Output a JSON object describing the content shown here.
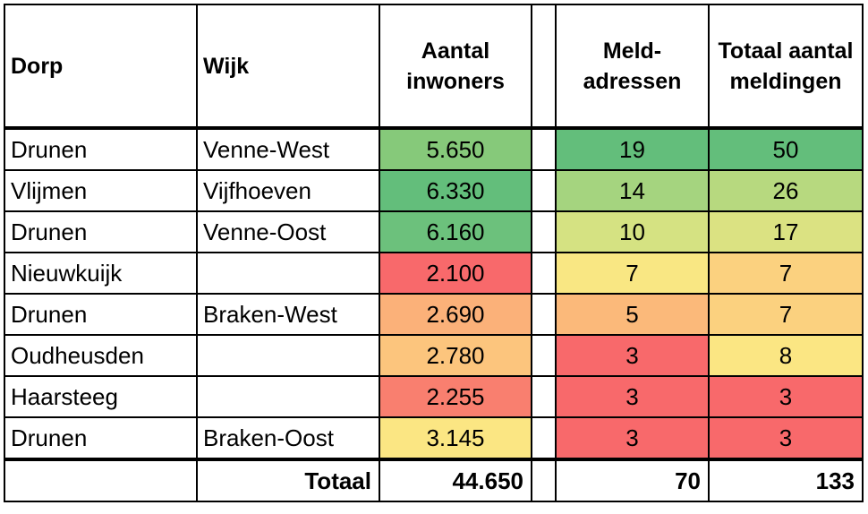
{
  "headers": {
    "dorp": "Dorp",
    "wijk": "Wijk",
    "inwoners_line1": "Aantal",
    "inwoners_line2": "inwoners",
    "meld_line1": "Meld-",
    "meld_line2": "adressen",
    "totaal_line1": "Totaal aantal",
    "totaal_line2": "meldingen"
  },
  "rows": [
    {
      "dorp": "Drunen",
      "wijk": "Venne-West",
      "inwoners": "5.650",
      "meldadressen": "19",
      "meldingen": "50",
      "inwoners_color": "#86c97a",
      "meldadressen_color": "#63be7b",
      "meldingen_color": "#63be7b"
    },
    {
      "dorp": "Vlijmen",
      "wijk": "Vijfhoeven",
      "inwoners": "6.330",
      "meldadressen": "14",
      "meldingen": "26",
      "inwoners_color": "#63be7b",
      "meldadressen_color": "#a5d47f",
      "meldingen_color": "#b7d97f"
    },
    {
      "dorp": "Drunen",
      "wijk": "Venne-Oost",
      "inwoners": "6.160",
      "meldadressen": "10",
      "meldingen": "17",
      "inwoners_color": "#6cc17c",
      "meldadressen_color": "#d5e282",
      "meldingen_color": "#dbe282"
    },
    {
      "dorp": "Nieuwkuijk",
      "wijk": "",
      "inwoners": "2.100",
      "meldadressen": "7",
      "meldingen": "7",
      "inwoners_color": "#f8696b",
      "meldadressen_color": "#f9e783",
      "meldingen_color": "#fbd17f"
    },
    {
      "dorp": "Drunen",
      "wijk": "Braken-West",
      "inwoners": "2.690",
      "meldadressen": "5",
      "meldingen": "7",
      "inwoners_color": "#fbb179",
      "meldadressen_color": "#fbb97a",
      "meldingen_color": "#fbd17f"
    },
    {
      "dorp": "Oudheusden",
      "wijk": "",
      "inwoners": "2.780",
      "meldadressen": "3",
      "meldingen": "8",
      "inwoners_color": "#fcc57d",
      "meldadressen_color": "#f8696b",
      "meldingen_color": "#fbe683"
    },
    {
      "dorp": "Haarsteeg",
      "wijk": "",
      "inwoners": "2.255",
      "meldadressen": "3",
      "meldingen": "3",
      "inwoners_color": "#f97f6f",
      "meldadressen_color": "#f8696b",
      "meldingen_color": "#f8696b"
    },
    {
      "dorp": "Drunen",
      "wijk": "Braken-Oost",
      "inwoners": "3.145",
      "meldadressen": "3",
      "meldingen": "3",
      "inwoners_color": "#fbe683",
      "meldadressen_color": "#f8696b",
      "meldingen_color": "#f8696b"
    }
  ],
  "totals": {
    "label": "Totaal",
    "inwoners": "44.650",
    "meldadressen": "70",
    "meldingen": "133"
  }
}
